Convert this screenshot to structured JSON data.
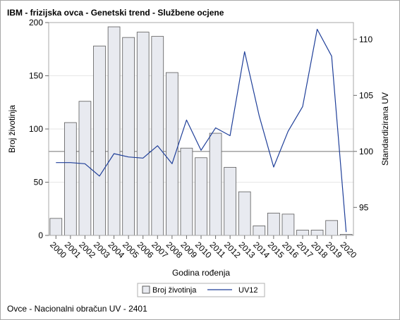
{
  "title": "IBM - frizijska ovca - Genetski trend - Službene ocjene",
  "footnote": "Ovce - Nacionalni obračun UV - 2401",
  "chart_data": {
    "type": "bar+line",
    "categories": [
      "2000",
      "2001",
      "2002",
      "2003",
      "2004",
      "2005",
      "2006",
      "2007",
      "2008",
      "2009",
      "2010",
      "2011",
      "2012",
      "2013",
      "2014",
      "2015",
      "2016",
      "2017",
      "2018",
      "2019",
      "2020"
    ],
    "xlabel": "Godina rođenja",
    "ylabel_left": "Broj životinja",
    "ylabel_right": "Standardizirana UV",
    "ylim_left": [
      0,
      200
    ],
    "yticks_left": [
      0,
      50,
      100,
      150,
      200
    ],
    "ylim_right": [
      92.5,
      111.5
    ],
    "yticks_right": [
      95,
      100,
      105,
      110
    ],
    "reference_line_right": 100,
    "series": [
      {
        "name": "Broj životinja",
        "type": "bar",
        "axis": "left",
        "color": "#e8eaf0",
        "edge_color": "#5a5a5a",
        "values": [
          16,
          106,
          126,
          178,
          196,
          186,
          191,
          187,
          153,
          82,
          73,
          96,
          64,
          41,
          9,
          21,
          20,
          5,
          5,
          14,
          1
        ]
      },
      {
        "name": "UV12",
        "type": "line",
        "axis": "right",
        "color": "#1f3f99",
        "values": [
          99.0,
          99.0,
          98.9,
          97.8,
          99.8,
          99.5,
          99.4,
          100.5,
          98.9,
          102.8,
          100.1,
          102.1,
          101.4,
          108.9,
          103.2,
          98.6,
          101.8,
          104.0,
          110.9,
          108.5,
          92.8
        ]
      }
    ],
    "legend_position": "bottom-center"
  }
}
